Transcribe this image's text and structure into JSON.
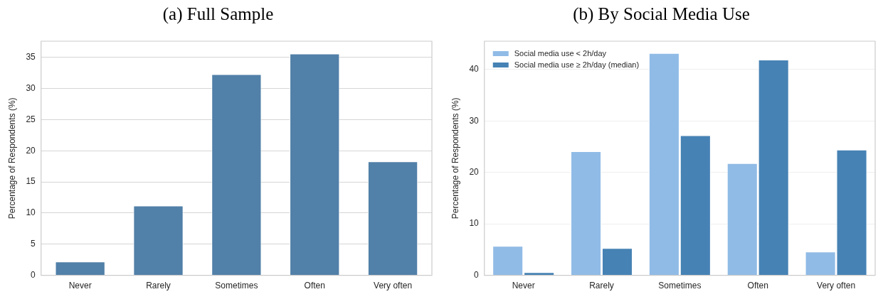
{
  "chart_data": [
    {
      "type": "bar",
      "title": "(a) Full Sample",
      "ylabel": "Percentage of Respondents (%)",
      "categories": [
        "Never",
        "Rarely",
        "Sometimes",
        "Often",
        "Very often"
      ],
      "values": [
        2.2,
        11.2,
        32.3,
        35.6,
        18.3
      ],
      "color": "#5180a8",
      "ylim": [
        0,
        37.6
      ],
      "yticks": [
        0,
        5,
        10,
        15,
        20,
        25,
        30,
        35
      ],
      "grid": "y",
      "legend": false
    },
    {
      "type": "bar",
      "title": "(b) By Social Media Use",
      "ylabel": "Percentage of Respondents (%)",
      "categories": [
        "Never",
        "Rarely",
        "Sometimes",
        "Often",
        "Very often"
      ],
      "series": [
        {
          "name": "Social media use < 2h/day",
          "color": "#90bbe6",
          "values": [
            5.7,
            24.1,
            43.2,
            21.8,
            4.6
          ]
        },
        {
          "name": "Social media use ≥ 2h/day (median)",
          "color": "#4682b4",
          "values": [
            0.6,
            5.3,
            27.2,
            41.9,
            24.4
          ]
        }
      ],
      "ylim": [
        0,
        45.5
      ],
      "yticks": [
        0,
        10,
        20,
        30,
        40
      ],
      "grid": "y",
      "legend": "top left"
    }
  ]
}
